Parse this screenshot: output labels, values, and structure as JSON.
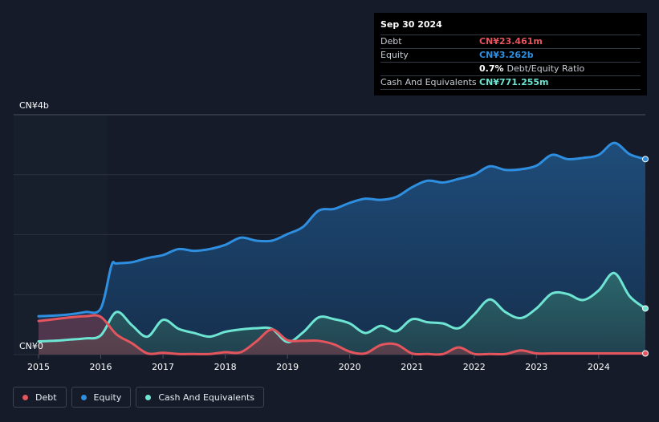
{
  "tooltip": {
    "date": "Sep 30 2024",
    "debt_label": "Debt",
    "debt_value": "CN¥23.461m",
    "equity_label": "Equity",
    "equity_value": "CN¥3.262b",
    "ratio_value": "0.7%",
    "ratio_label": "Debt/Equity Ratio",
    "cash_label": "Cash And Equivalents",
    "cash_value": "CN¥771.255m"
  },
  "legend": {
    "debt": "Debt",
    "equity": "Equity",
    "cash": "Cash And Equivalents"
  },
  "colors": {
    "debt": "#e4555d",
    "equity": "#2e8fe0",
    "cash": "#6ee5d3",
    "background": "#151b29"
  },
  "chart_data": {
    "type": "area",
    "y_unit": "CN¥ billions",
    "ylim": [
      0,
      4
    ],
    "y_ticks": [
      "CN¥0",
      "CN¥4b"
    ],
    "x_ticks": [
      "2015",
      "2016",
      "2017",
      "2018",
      "2019",
      "2020",
      "2021",
      "2022",
      "2023",
      "2024"
    ],
    "xlim": [
      2015.0,
      2024.75
    ],
    "series": [
      {
        "name": "Equity",
        "points": [
          [
            2015.0,
            0.64
          ],
          [
            2015.25,
            0.65
          ],
          [
            2015.5,
            0.67
          ],
          [
            2015.75,
            0.71
          ],
          [
            2016.0,
            0.77
          ],
          [
            2016.17,
            1.48
          ],
          [
            2016.25,
            1.52
          ],
          [
            2016.5,
            1.54
          ],
          [
            2016.75,
            1.61
          ],
          [
            2017.0,
            1.66
          ],
          [
            2017.25,
            1.76
          ],
          [
            2017.5,
            1.73
          ],
          [
            2017.75,
            1.76
          ],
          [
            2018.0,
            1.83
          ],
          [
            2018.25,
            1.95
          ],
          [
            2018.5,
            1.9
          ],
          [
            2018.75,
            1.9
          ],
          [
            2019.0,
            2.01
          ],
          [
            2019.25,
            2.13
          ],
          [
            2019.5,
            2.4
          ],
          [
            2019.75,
            2.43
          ],
          [
            2020.0,
            2.53
          ],
          [
            2020.25,
            2.6
          ],
          [
            2020.5,
            2.58
          ],
          [
            2020.75,
            2.63
          ],
          [
            2021.0,
            2.79
          ],
          [
            2021.25,
            2.9
          ],
          [
            2021.5,
            2.87
          ],
          [
            2021.75,
            2.93
          ],
          [
            2022.0,
            3.0
          ],
          [
            2022.25,
            3.14
          ],
          [
            2022.5,
            3.08
          ],
          [
            2022.75,
            3.09
          ],
          [
            2023.0,
            3.15
          ],
          [
            2023.25,
            3.33
          ],
          [
            2023.5,
            3.26
          ],
          [
            2023.75,
            3.28
          ],
          [
            2024.0,
            3.33
          ],
          [
            2024.25,
            3.53
          ],
          [
            2024.5,
            3.34
          ],
          [
            2024.75,
            3.26
          ]
        ]
      },
      {
        "name": "Cash And Equivalents",
        "points": [
          [
            2015.0,
            0.22
          ],
          [
            2015.25,
            0.23
          ],
          [
            2015.5,
            0.25
          ],
          [
            2015.75,
            0.27
          ],
          [
            2016.0,
            0.32
          ],
          [
            2016.25,
            0.71
          ],
          [
            2016.5,
            0.49
          ],
          [
            2016.75,
            0.3
          ],
          [
            2017.0,
            0.58
          ],
          [
            2017.25,
            0.43
          ],
          [
            2017.5,
            0.36
          ],
          [
            2017.75,
            0.3
          ],
          [
            2018.0,
            0.38
          ],
          [
            2018.25,
            0.42
          ],
          [
            2018.5,
            0.44
          ],
          [
            2018.75,
            0.43
          ],
          [
            2019.0,
            0.21
          ],
          [
            2019.25,
            0.37
          ],
          [
            2019.5,
            0.62
          ],
          [
            2019.75,
            0.59
          ],
          [
            2020.0,
            0.52
          ],
          [
            2020.25,
            0.36
          ],
          [
            2020.5,
            0.48
          ],
          [
            2020.75,
            0.39
          ],
          [
            2021.0,
            0.59
          ],
          [
            2021.25,
            0.54
          ],
          [
            2021.5,
            0.52
          ],
          [
            2021.75,
            0.44
          ],
          [
            2022.0,
            0.67
          ],
          [
            2022.25,
            0.92
          ],
          [
            2022.5,
            0.71
          ],
          [
            2022.75,
            0.61
          ],
          [
            2023.0,
            0.77
          ],
          [
            2023.25,
            1.02
          ],
          [
            2023.5,
            1.01
          ],
          [
            2023.75,
            0.91
          ],
          [
            2024.0,
            1.07
          ],
          [
            2024.25,
            1.36
          ],
          [
            2024.5,
            0.97
          ],
          [
            2024.75,
            0.77
          ]
        ]
      },
      {
        "name": "Debt",
        "points": [
          [
            2015.0,
            0.56
          ],
          [
            2015.25,
            0.59
          ],
          [
            2015.5,
            0.62
          ],
          [
            2015.75,
            0.64
          ],
          [
            2016.0,
            0.63
          ],
          [
            2016.25,
            0.34
          ],
          [
            2016.5,
            0.19
          ],
          [
            2016.75,
            0.02
          ],
          [
            2017.0,
            0.03
          ],
          [
            2017.25,
            0.01
          ],
          [
            2017.5,
            0.01
          ],
          [
            2017.75,
            0.01
          ],
          [
            2018.0,
            0.04
          ],
          [
            2018.25,
            0.04
          ],
          [
            2018.5,
            0.22
          ],
          [
            2018.75,
            0.42
          ],
          [
            2019.0,
            0.24
          ],
          [
            2019.25,
            0.23
          ],
          [
            2019.5,
            0.23
          ],
          [
            2019.75,
            0.17
          ],
          [
            2020.0,
            0.05
          ],
          [
            2020.25,
            0.02
          ],
          [
            2020.5,
            0.16
          ],
          [
            2020.75,
            0.17
          ],
          [
            2021.0,
            0.02
          ],
          [
            2021.25,
            0.01
          ],
          [
            2021.5,
            0.01
          ],
          [
            2021.75,
            0.12
          ],
          [
            2022.0,
            0.01
          ],
          [
            2022.25,
            0.01
          ],
          [
            2022.5,
            0.01
          ],
          [
            2022.75,
            0.07
          ],
          [
            2023.0,
            0.02
          ],
          [
            2023.25,
            0.02
          ],
          [
            2023.5,
            0.02
          ],
          [
            2023.75,
            0.02
          ],
          [
            2024.0,
            0.02
          ],
          [
            2024.25,
            0.02
          ],
          [
            2024.5,
            0.02
          ],
          [
            2024.75,
            0.02
          ]
        ]
      }
    ]
  }
}
